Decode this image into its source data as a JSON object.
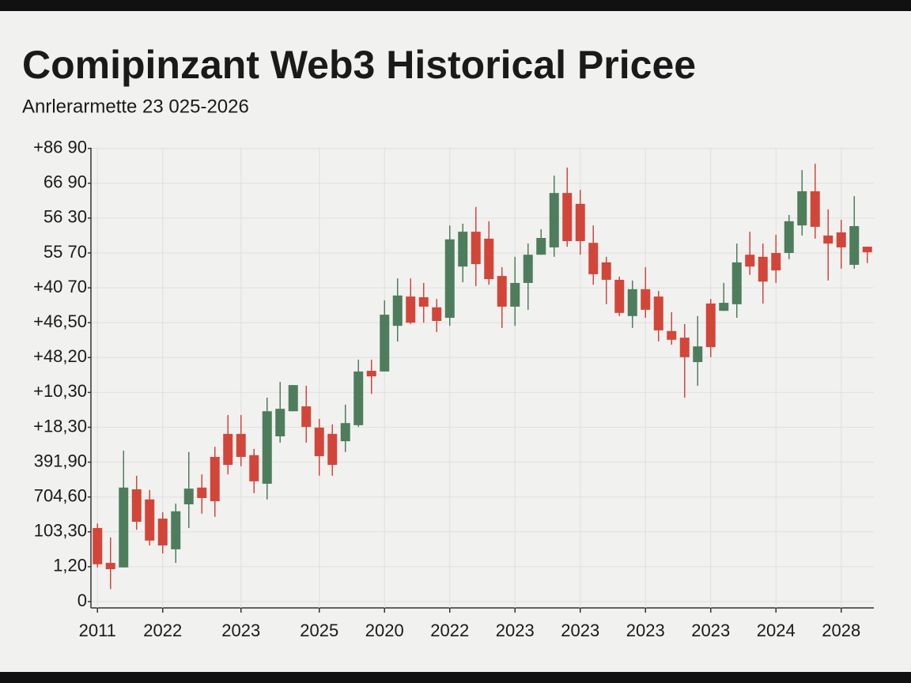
{
  "chart_data": {
    "type": "candlestick",
    "title": "Comipinzant Web3 Historical Pricee",
    "subtitle": "Anrlerarmette 23 025-2026",
    "categories": [
      "2011",
      null,
      null,
      null,
      null,
      "2022",
      null,
      null,
      null,
      null,
      null,
      "2023",
      null,
      null,
      null,
      null,
      null,
      "2025",
      null,
      null,
      null,
      null,
      "2020",
      null,
      null,
      null,
      null,
      "2022",
      null,
      null,
      null,
      null,
      "2023",
      null,
      null,
      null,
      null,
      "2023",
      null,
      null,
      null,
      null,
      "2023",
      null,
      null,
      null,
      null,
      "2023",
      null,
      null,
      null,
      null,
      "2024",
      null,
      null,
      null,
      null,
      "2028",
      null,
      null
    ],
    "open": [
      2.11,
      1.11,
      0.98,
      3.22,
      2.93,
      2.38,
      1.5,
      2.79,
      3.27,
      4.15,
      4.81,
      4.81,
      4.2,
      3.38,
      4.74,
      5.46,
      5.6,
      4.99,
      4.81,
      4.6,
      5.06,
      6.62,
      6.6,
      7.91,
      8.75,
      8.73,
      8.44,
      8.14,
      9.61,
      10.61,
      10.41,
      9.34,
      8.46,
      9.14,
      9.95,
      10.16,
      11.72,
      11.41,
      10.29,
      9.73,
      9.23,
      8.19,
      8.96,
      8.75,
      7.76,
      7.57,
      6.87,
      8.55,
      8.34,
      8.53,
      9.95,
      9.89,
      10.0,
      10.0,
      10.79,
      11.77,
      10.5,
      10.59,
      9.66,
      10.18
    ],
    "high": [
      2.24,
      1.84,
      4.33,
      3.61,
      3.2,
      2.56,
      2.81,
      4.29,
      3.65,
      4.44,
      5.35,
      5.35,
      4.38,
      5.85,
      6.3,
      6.21,
      6.19,
      5.24,
      5.08,
      5.65,
      6.94,
      6.94,
      8.64,
      9.27,
      9.27,
      9.14,
      8.68,
      10.79,
      10.84,
      11.32,
      10.91,
      9.59,
      9.89,
      10.27,
      10.68,
      12.22,
      12.45,
      11.81,
      10.79,
      9.89,
      9.32,
      9.21,
      9.59,
      8.91,
      8.3,
      7.96,
      8.19,
      8.68,
      9.14,
      10.27,
      10.61,
      10.27,
      10.52,
      11.09,
      12.38,
      12.56,
      11.25,
      10.95,
      11.63,
      10.18
    ],
    "low": [
      0.98,
      0.36,
      0.98,
      2.06,
      1.61,
      1.38,
      1.11,
      2.11,
      2.52,
      2.43,
      3.65,
      3.88,
      3.11,
      2.93,
      4.56,
      5.46,
      4.56,
      3.61,
      3.61,
      4.29,
      5.01,
      5.96,
      6.6,
      7.46,
      7.96,
      8.0,
      7.73,
      7.91,
      9.16,
      9.05,
      9.09,
      7.85,
      7.91,
      8.37,
      9.95,
      9.89,
      10.18,
      9.95,
      9.09,
      8.53,
      8.19,
      7.85,
      8.14,
      7.46,
      7.37,
      5.85,
      6.19,
      7.01,
      8.34,
      8.14,
      9.37,
      8.55,
      9.14,
      9.82,
      10.5,
      10.41,
      9.21,
      9.55,
      9.55,
      9.71
    ],
    "close": [
      1.07,
      0.93,
      3.27,
      2.29,
      1.75,
      1.61,
      2.59,
      3.24,
      2.97,
      2.88,
      3.92,
      4.15,
      3.45,
      5.46,
      5.53,
      6.21,
      5.01,
      4.17,
      3.92,
      5.12,
      6.6,
      6.46,
      8.23,
      8.78,
      8.0,
      8.46,
      8.05,
      10.39,
      10.61,
      9.68,
      9.25,
      8.46,
      9.14,
      9.95,
      10.43,
      11.72,
      10.34,
      10.34,
      9.39,
      9.23,
      8.28,
      8.96,
      8.37,
      7.78,
      7.51,
      7.01,
      7.32,
      7.3,
      8.57,
      9.73,
      9.61,
      9.18,
      9.5,
      10.91,
      11.77,
      10.75,
      10.27,
      10.16,
      10.77,
      10.02
    ],
    "up_color": "#4e7d5b",
    "down_color": "#d2463a",
    "ylim": [
      0,
      13.2
    ],
    "yticks": [
      0,
      {
        "value": 1,
        "label": "1,20"
      },
      {
        "value": 2,
        "label": "103,30"
      },
      {
        "value": 3,
        "label": "704,60"
      },
      {
        "value": 4,
        "label": "391,90"
      },
      {
        "value": 5,
        "label": "+18,30"
      },
      {
        "value": 6,
        "label": "+10,30"
      },
      {
        "value": 7,
        "label": "+48,20"
      },
      {
        "value": 8,
        "label": "+46,50"
      },
      {
        "value": 9,
        "label": "+40 70"
      },
      {
        "value": 10,
        "label": "55 70"
      },
      {
        "value": 11,
        "label": "56 30"
      },
      {
        "value": 12,
        "label": "66 90"
      },
      {
        "value": 13,
        "label": "+86 90"
      }
    ],
    "grid": true
  }
}
